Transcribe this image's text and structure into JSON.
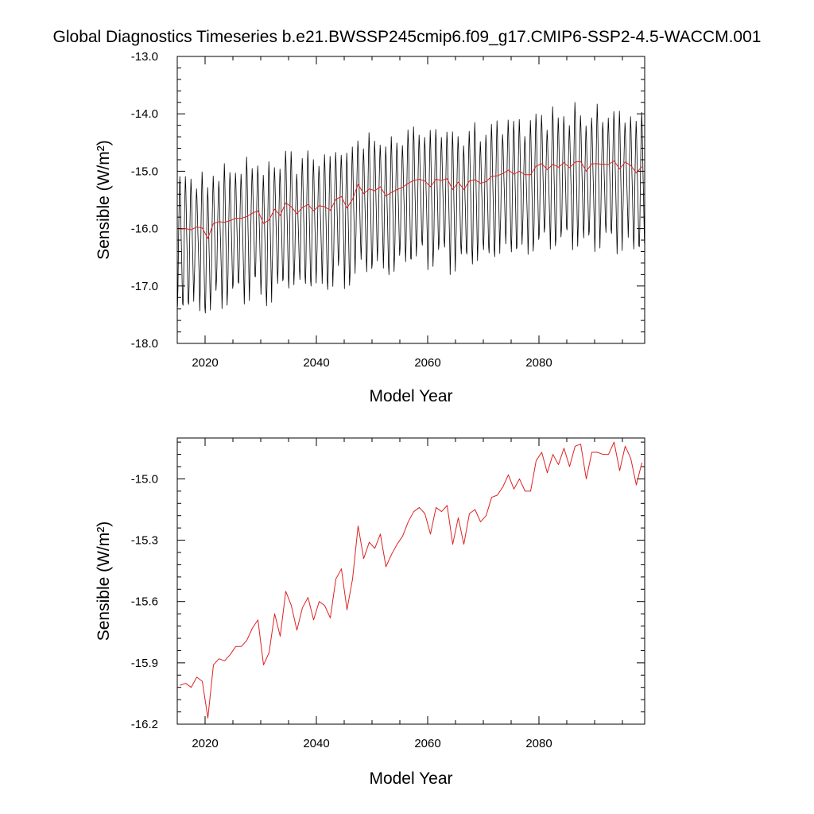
{
  "title": "Global Diagnostics Timeseries b.e21.BWSSP245cmip6.f09_g17.CMIP6-SSP2-4.5-WACCM.001",
  "chart_data": [
    {
      "type": "line",
      "xlabel": "Model Year",
      "ylabel": "Sensible (W/m²)",
      "xlim": [
        2015,
        2099
      ],
      "ylim": [
        -18.0,
        -13.0
      ],
      "xticks": [
        2020,
        2040,
        2060,
        2080
      ],
      "yticks": [
        -18.0,
        -17.0,
        -16.0,
        -15.0,
        -14.0,
        -13.0
      ],
      "ytick_labels": [
        "-18.0",
        "-17.0",
        "-16.0",
        "-15.0",
        "-14.0",
        "-13.0"
      ],
      "series": [
        {
          "kind": "monthly",
          "color": "#000000",
          "start_year": 2015,
          "monthly_offsets": [
            -1.25,
            -0.95,
            -0.35,
            0.15,
            0.55,
            0.85,
            0.65,
            0.25,
            -0.15,
            -0.45,
            -0.85,
            -1.2
          ],
          "annual_mean_ref": "bottom"
        },
        {
          "kind": "annual",
          "color": "#dd2222",
          "annual_mean_ref": "bottom"
        }
      ]
    },
    {
      "type": "line",
      "xlabel": "Model Year",
      "ylabel": "Sensible (W/m²)",
      "xlim": [
        2015,
        2099
      ],
      "ylim": [
        -16.2,
        -14.8
      ],
      "xticks": [
        2020,
        2040,
        2060,
        2080
      ],
      "yticks": [
        -16.2,
        -15.9,
        -15.6,
        -15.3,
        -15.0
      ],
      "ytick_labels": [
        "-16.2",
        "-15.9",
        "-15.6",
        "-15.3",
        "-15.0"
      ],
      "series": [
        {
          "color": "#dd2222",
          "x": [
            2015,
            2016,
            2017,
            2018,
            2019,
            2020,
            2021,
            2022,
            2023,
            2024,
            2025,
            2026,
            2027,
            2028,
            2029,
            2030,
            2031,
            2032,
            2033,
            2034,
            2035,
            2036,
            2037,
            2038,
            2039,
            2040,
            2041,
            2042,
            2043,
            2044,
            2045,
            2046,
            2047,
            2048,
            2049,
            2050,
            2051,
            2052,
            2053,
            2054,
            2055,
            2056,
            2057,
            2058,
            2059,
            2060,
            2061,
            2062,
            2063,
            2064,
            2065,
            2066,
            2067,
            2068,
            2069,
            2070,
            2071,
            2072,
            2073,
            2074,
            2075,
            2076,
            2077,
            2078,
            2079,
            2080,
            2081,
            2082,
            2083,
            2084,
            2085,
            2086,
            2087,
            2088,
            2089,
            2090,
            2091,
            2092,
            2093,
            2094,
            2095,
            2096,
            2097,
            2098
          ],
          "values": [
            -16.01,
            -16.0,
            -16.02,
            -15.97,
            -15.99,
            -16.17,
            -15.91,
            -15.88,
            -15.89,
            -15.86,
            -15.82,
            -15.82,
            -15.79,
            -15.73,
            -15.69,
            -15.91,
            -15.85,
            -15.66,
            -15.77,
            -15.55,
            -15.62,
            -15.74,
            -15.63,
            -15.58,
            -15.69,
            -15.6,
            -15.62,
            -15.68,
            -15.49,
            -15.44,
            -15.64,
            -15.49,
            -15.23,
            -15.39,
            -15.31,
            -15.34,
            -15.27,
            -15.43,
            -15.37,
            -15.32,
            -15.28,
            -15.21,
            -15.16,
            -15.14,
            -15.17,
            -15.27,
            -15.14,
            -15.16,
            -15.13,
            -15.32,
            -15.19,
            -15.32,
            -15.17,
            -15.15,
            -15.21,
            -15.18,
            -15.09,
            -15.08,
            -15.04,
            -14.98,
            -15.05,
            -15.0,
            -15.06,
            -15.06,
            -14.91,
            -14.87,
            -14.97,
            -14.88,
            -14.93,
            -14.85,
            -14.94,
            -14.84,
            -14.83,
            -15.0,
            -14.87,
            -14.87,
            -14.88,
            -14.88,
            -14.82,
            -14.96,
            -14.84,
            -14.9,
            -15.03,
            -14.92
          ]
        }
      ]
    }
  ]
}
